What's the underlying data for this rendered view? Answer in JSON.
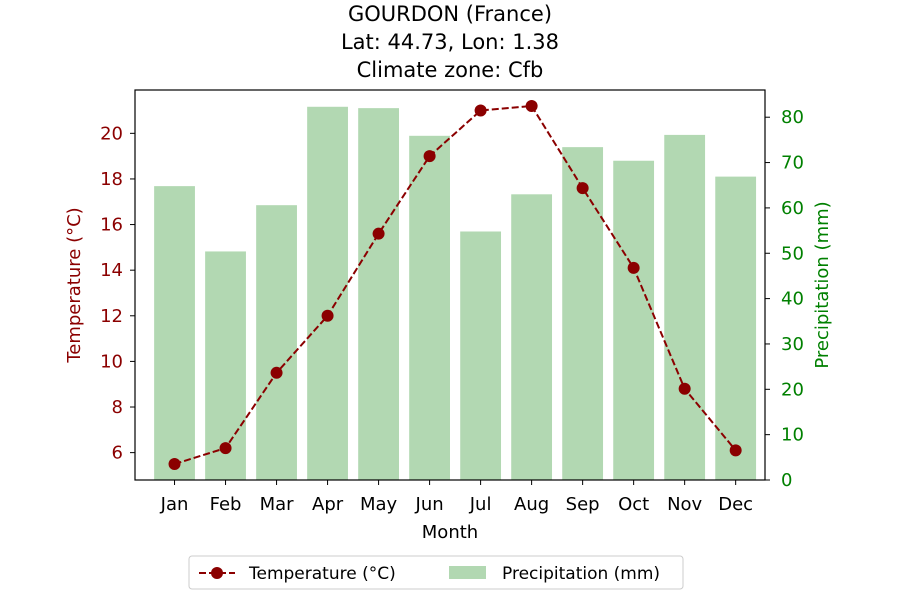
{
  "chart_data": {
    "type": "bar+line",
    "title_lines": [
      "GOURDON (France)",
      "Lat: 44.73, Lon: 1.38",
      "Climate zone: Cfb"
    ],
    "categories": [
      "Jan",
      "Feb",
      "Mar",
      "Apr",
      "May",
      "Jun",
      "Jul",
      "Aug",
      "Sep",
      "Oct",
      "Nov",
      "Dec"
    ],
    "xlabel": "Month",
    "temperature": {
      "name": "Temperature (°C)",
      "axis": "left",
      "ylabel": "Temperature (°C)",
      "ylim": [
        4.8,
        21.9
      ],
      "ticks": [
        6,
        8,
        10,
        12,
        14,
        16,
        18,
        20
      ],
      "color": "#8b0000",
      "line_style": "dashed",
      "marker": "circle",
      "values": [
        5.5,
        6.2,
        9.5,
        12.0,
        15.6,
        19.0,
        21.0,
        21.2,
        17.6,
        14.1,
        8.8,
        6.1
      ]
    },
    "precipitation": {
      "name": "Precipitation (mm)",
      "axis": "right",
      "ylabel": "Precipitation (mm)",
      "ylim": [
        0,
        86
      ],
      "ticks": [
        0,
        10,
        20,
        30,
        40,
        50,
        60,
        70,
        80
      ],
      "color": "#b2d8b2",
      "tick_color": "#008000",
      "values": [
        64.8,
        50.4,
        60.6,
        82.3,
        82.0,
        75.9,
        54.8,
        63.0,
        73.4,
        70.4,
        76.1,
        66.9
      ]
    },
    "legend_position": "bottom-center",
    "grid": false
  }
}
